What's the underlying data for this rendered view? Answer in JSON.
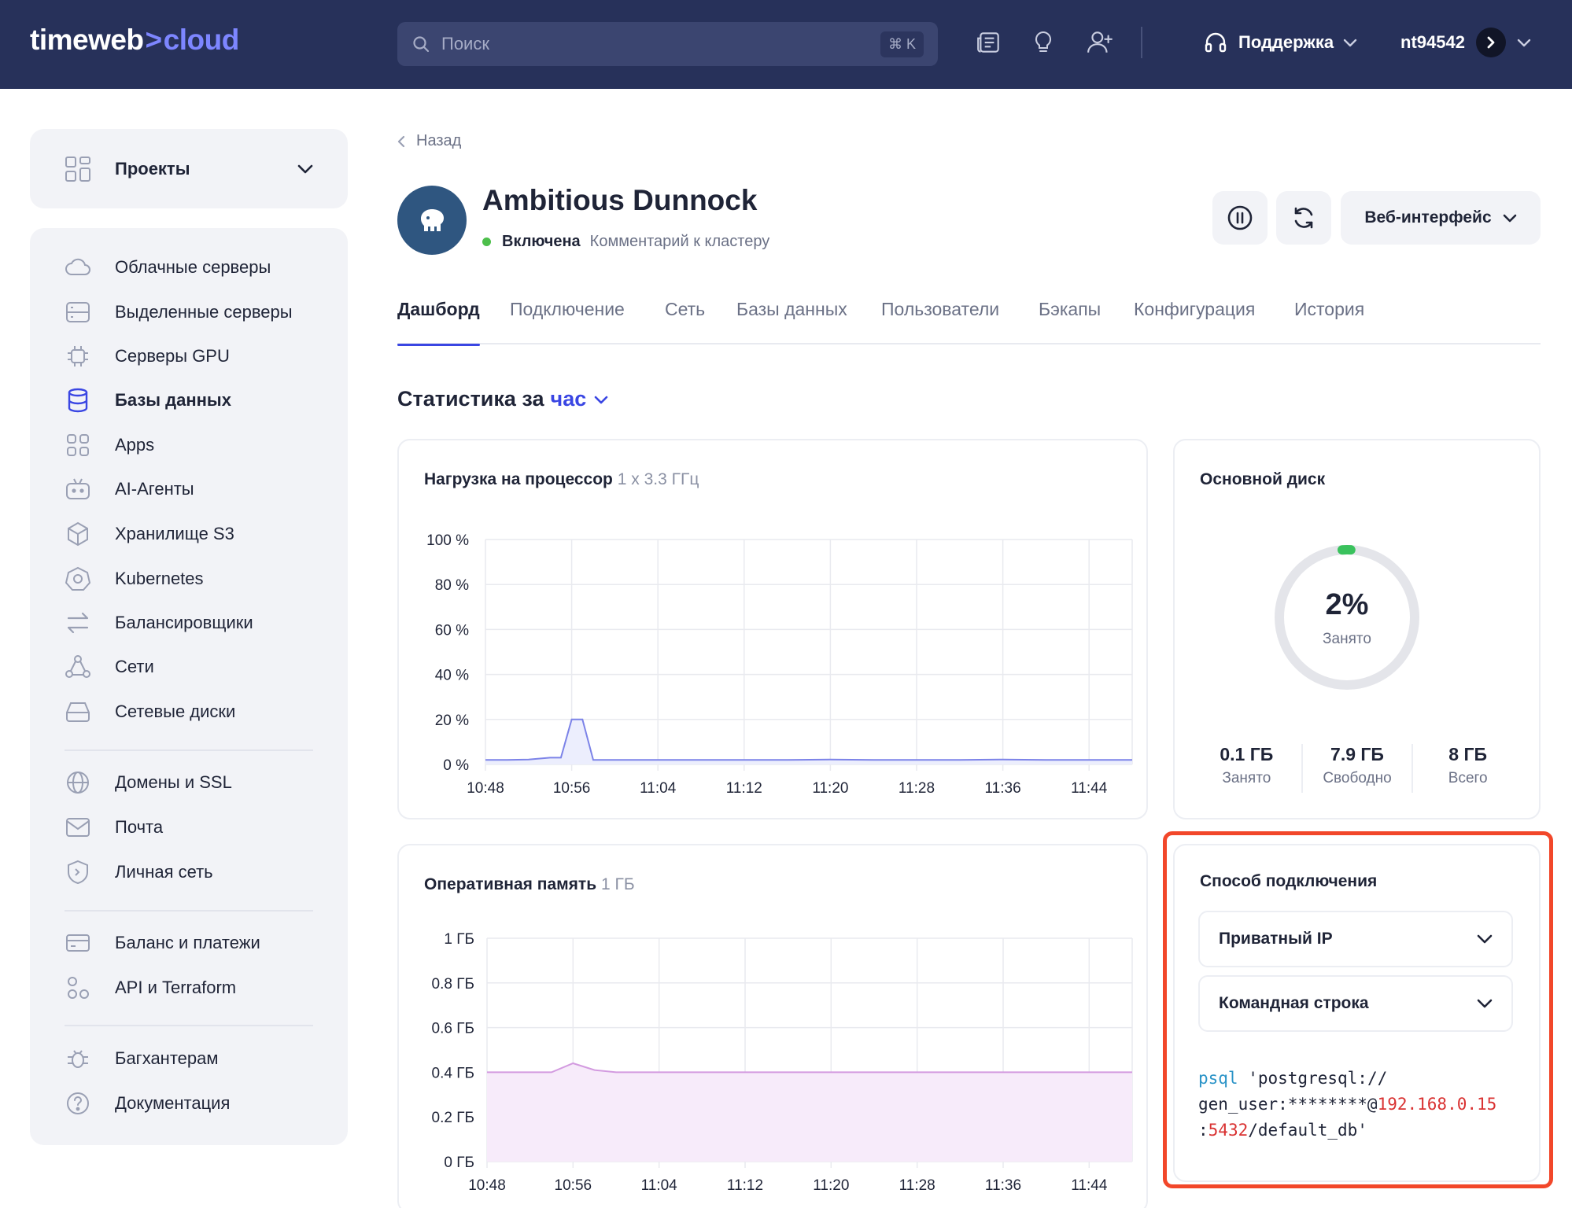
{
  "header": {
    "logo_main": "timeweb",
    "logo_chevron": ">",
    "logo_suffix": "cloud",
    "search_placeholder": "Поиск",
    "search_shortcut": "⌘ K",
    "support_label": "Поддержка",
    "username": "nt94542",
    "icons": [
      "news-icon",
      "lightbulb-icon",
      "add-user-icon",
      "headset-icon"
    ]
  },
  "sidebar": {
    "projects_label": "Проекты",
    "items": [
      {
        "label": "Облачные серверы",
        "icon": "cloud-icon"
      },
      {
        "label": "Выделенные серверы",
        "icon": "server-icon"
      },
      {
        "label": "Серверы GPU",
        "icon": "gpu-chip-icon"
      },
      {
        "label": "Базы данных",
        "icon": "database-icon",
        "active": true
      },
      {
        "label": "Apps",
        "icon": "apps-grid-icon"
      },
      {
        "label": "AI-Агенты",
        "icon": "robot-icon"
      },
      {
        "label": "Хранилище S3",
        "icon": "cube-icon"
      },
      {
        "label": "Kubernetes",
        "icon": "kubernetes-icon"
      },
      {
        "label": "Балансировщики",
        "icon": "balancer-arrows-icon"
      },
      {
        "label": "Сети",
        "icon": "network-icon"
      },
      {
        "label": "Сетевые диски",
        "icon": "disk-icon"
      },
      {
        "label": "Домены и SSL",
        "icon": "globe-icon"
      },
      {
        "label": "Почта",
        "icon": "mail-icon"
      },
      {
        "label": "Личная сеть",
        "icon": "shield-icon"
      },
      {
        "label": "Баланс и платежи",
        "icon": "card-icon"
      },
      {
        "label": "API и Terraform",
        "icon": "api-nodes-icon"
      },
      {
        "label": "Багхантерам",
        "icon": "bug-icon"
      },
      {
        "label": "Документация",
        "icon": "help-icon"
      }
    ]
  },
  "page": {
    "back_label": "Назад",
    "title": "Ambitious Dunnock",
    "status": "Включена",
    "comment_link": "Комментарий к кластеру",
    "web_ui_label": "Веб-интерфейс",
    "accent_color": "#3a46e3",
    "status_color": "#4dbf4b"
  },
  "tabs": [
    {
      "label": "Дашборд",
      "active": true
    },
    {
      "label": "Подключение"
    },
    {
      "label": "Сеть"
    },
    {
      "label": "Базы данных"
    },
    {
      "label": "Пользователи"
    },
    {
      "label": "Бэкапы"
    },
    {
      "label": "Конфигурация"
    },
    {
      "label": "История"
    }
  ],
  "stats": {
    "title_prefix": "Статистика за",
    "period": "час"
  },
  "cpu_card": {
    "title": "Нагрузка на процессор",
    "subtitle": "1 x 3.3 ГГц"
  },
  "ram_card": {
    "title": "Оперативная память",
    "subtitle": "1 ГБ"
  },
  "disk_card": {
    "title": "Основной диск",
    "percent": "2%",
    "percent_label": "Занято",
    "used_fraction": 0.02,
    "used_value": "0.1 ГБ",
    "used_label": "Занято",
    "free_value": "7.9 ГБ",
    "free_label": "Свободно",
    "total_value": "8 ГБ",
    "total_label": "Всего"
  },
  "connection_card": {
    "title": "Способ подключения",
    "ip_select": "Приватный IP",
    "method_select": "Командная строка",
    "cmd_keyword": "psql",
    "cmd_part1": " 'postgresql://",
    "cmd_part2": "gen_user:********@",
    "cmd_host": "192.168.0.15",
    "cmd_colon": ":",
    "cmd_port": "5432",
    "cmd_tail": "/default_db'"
  },
  "chart_data": [
    {
      "type": "area",
      "x": [
        "10:48",
        "10:50",
        "10:52",
        "10:54",
        "10:55",
        "10:56",
        "10:57",
        "10:58",
        "11:00",
        "11:04",
        "11:08",
        "11:12",
        "11:16",
        "11:20",
        "11:24",
        "11:28",
        "11:32",
        "11:36",
        "11:40",
        "11:44",
        "11:48"
      ],
      "xticks": [
        "10:48",
        "10:56",
        "11:04",
        "11:12",
        "11:20",
        "11:28",
        "11:36",
        "11:44"
      ],
      "yticks": [
        "100 %",
        "80 %",
        "60 %",
        "40 %",
        "20 %",
        "0 %"
      ],
      "ylim": [
        0,
        100
      ],
      "series": [
        {
          "values": [
            2,
            2,
            2.2,
            3,
            3,
            20,
            20,
            2,
            2,
            2,
            2,
            2,
            2,
            2.2,
            2,
            2,
            2,
            2.2,
            2,
            2,
            2
          ]
        }
      ],
      "color": "#7c83e8",
      "fill": "#eceefd"
    },
    {
      "type": "area",
      "x": [
        "10:48",
        "10:50",
        "10:52",
        "10:54",
        "10:56",
        "10:58",
        "11:00",
        "11:04",
        "11:08",
        "11:12",
        "11:16",
        "11:20",
        "11:24",
        "11:28",
        "11:32",
        "11:36",
        "11:40",
        "11:44",
        "11:48"
      ],
      "xticks": [
        "10:48",
        "10:56",
        "11:04",
        "11:12",
        "11:20",
        "11:28",
        "11:36",
        "11:44"
      ],
      "yticks": [
        "1 ГБ",
        "0.8 ГБ",
        "0.6 ГБ",
        "0.4 ГБ",
        "0.2 ГБ",
        "0 ГБ"
      ],
      "ylim": [
        0,
        1
      ],
      "series": [
        {
          "values": [
            0.4,
            0.4,
            0.4,
            0.4,
            0.44,
            0.41,
            0.4,
            0.4,
            0.4,
            0.4,
            0.4,
            0.4,
            0.4,
            0.4,
            0.4,
            0.4,
            0.4,
            0.4,
            0.4
          ]
        }
      ],
      "color": "#d39be0",
      "fill": "#f7ebfa"
    }
  ]
}
